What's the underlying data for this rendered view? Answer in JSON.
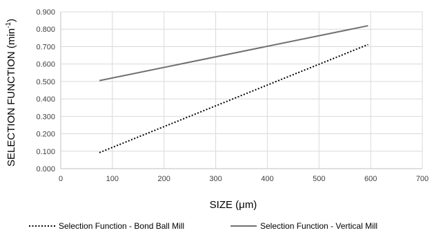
{
  "chart_data": {
    "type": "line",
    "xlabel": "SIZE (μm)",
    "ylabel_main": "SELECTION FUNCTION (min",
    "ylabel_sup": "-1",
    "ylabel_end": ")",
    "xlim": [
      0,
      700
    ],
    "ylim": [
      0,
      0.9
    ],
    "x_ticks": [
      0,
      100,
      200,
      300,
      400,
      500,
      600,
      700
    ],
    "x_tick_labels": [
      "0",
      "100",
      "200",
      "300",
      "400",
      "500",
      "600",
      "700"
    ],
    "y_ticks": [
      0,
      0.1,
      0.2,
      0.3,
      0.4,
      0.5,
      0.6,
      0.7,
      0.8,
      0.9
    ],
    "y_tick_labels": [
      "0.000",
      "0.100",
      "0.200",
      "0.300",
      "0.400",
      "0.500",
      "0.600",
      "0.700",
      "0.800",
      "0.900"
    ],
    "grid": true,
    "legend_position": "bottom",
    "series": [
      {
        "name": "Selection Function - Bond Ball Mill",
        "style": "dotted",
        "color": "#000000",
        "x": [
          75,
          595
        ],
        "y": [
          0.092,
          0.712
        ]
      },
      {
        "name": "Selection Function - Vertical Mill",
        "style": "solid",
        "color": "#707070",
        "x": [
          75,
          595
        ],
        "y": [
          0.505,
          0.82
        ]
      }
    ]
  }
}
